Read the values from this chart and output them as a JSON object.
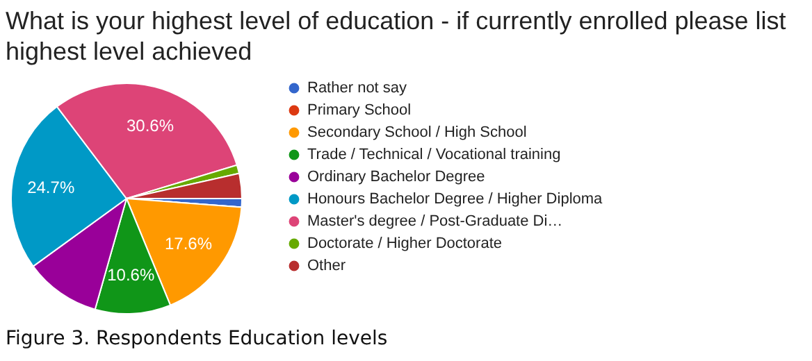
{
  "chart_data": {
    "type": "pie",
    "title": "What is your highest level of education - if currently enrolled please list highest level achieved",
    "categories": [
      "Rather not say",
      "Primary School",
      "Secondary School / High School",
      "Trade / Technical / Vocational training",
      "Ordinary Bachelor Degree",
      "Honours Bachelor Degree / Higher Diploma",
      "Master's degree / Post-Graduate Di…",
      "Doctorate / Higher Doctorate",
      "Other"
    ],
    "values": [
      1.2,
      0,
      17.6,
      10.6,
      10.6,
      24.7,
      30.6,
      1.2,
      3.5
    ],
    "colors": [
      "#3366cc",
      "#dc3912",
      "#ff9900",
      "#109618",
      "#990099",
      "#0099c6",
      "#dd4477",
      "#66aa00",
      "#b82e2e"
    ],
    "value_labels": [
      null,
      null,
      "17.6%",
      "10.6%",
      null,
      "24.7%",
      "30.6%",
      null,
      null
    ],
    "legend": "right",
    "annotations": [
      "Figure 3. Respondents Education levels"
    ]
  }
}
